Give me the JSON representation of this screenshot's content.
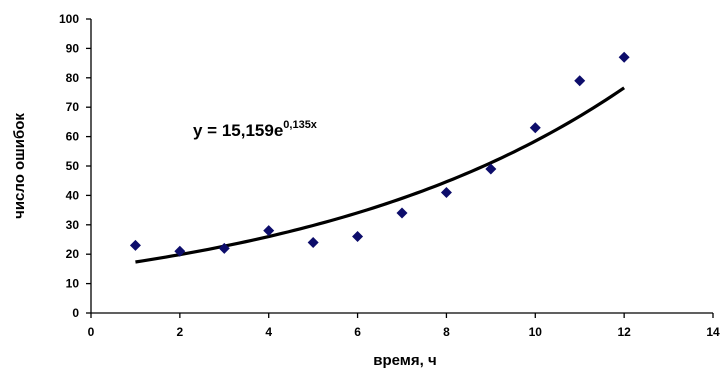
{
  "chart_data": {
    "type": "scatter",
    "title": "",
    "xlabel": "время, ч",
    "ylabel": "число ошибок",
    "xlim": [
      0,
      14
    ],
    "ylim": [
      0,
      100
    ],
    "xticks": [
      0,
      2,
      4,
      6,
      8,
      10,
      12,
      14
    ],
    "yticks": [
      0,
      10,
      20,
      30,
      40,
      50,
      60,
      70,
      80,
      90,
      100
    ],
    "grid": false,
    "colors": {
      "points": "#0d0d6b",
      "trendline": "#000000"
    },
    "series": [
      {
        "name": "",
        "x": [
          1,
          2,
          3,
          4,
          5,
          6,
          7,
          8,
          9,
          10,
          11,
          12
        ],
        "y": [
          23,
          21,
          22,
          28,
          24,
          26,
          34,
          41,
          49,
          63,
          79,
          87
        ]
      }
    ],
    "trendline": {
      "type": "exponential",
      "a": 15.159,
      "b": 0.135,
      "x_range": [
        1,
        12
      ],
      "label_main": "y = 15,159e",
      "label_exponent": "0,135x"
    }
  }
}
